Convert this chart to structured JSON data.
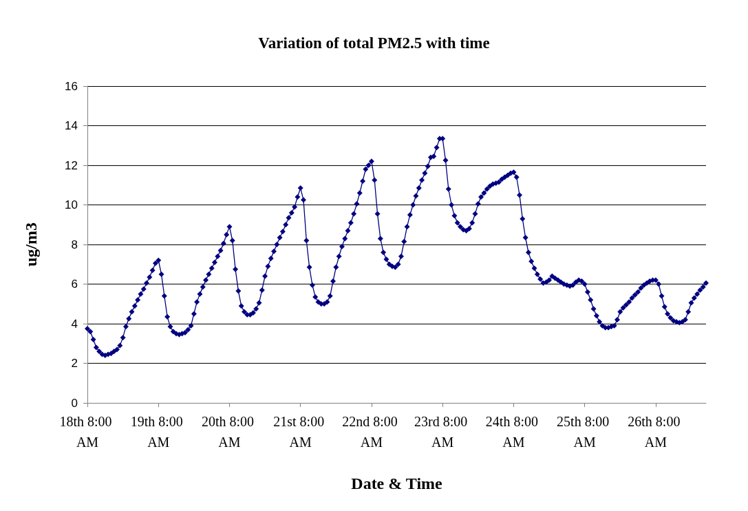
{
  "chart_data": {
    "type": "line",
    "title": "Variation of total PM2.5 with time",
    "xlabel": "Date & Time",
    "ylabel": "ug/m3",
    "categories": [
      "18th 8:00 AM",
      null,
      null,
      null,
      null,
      null,
      null,
      null,
      null,
      null,
      null,
      null,
      null,
      null,
      null,
      null,
      null,
      null,
      null,
      null,
      null,
      null,
      null,
      null,
      "19th 8:00 AM",
      null,
      null,
      null,
      null,
      null,
      null,
      null,
      null,
      null,
      null,
      null,
      null,
      null,
      null,
      null,
      null,
      null,
      null,
      null,
      null,
      null,
      null,
      null,
      "20th 8:00 AM",
      null,
      null,
      null,
      null,
      null,
      null,
      null,
      null,
      null,
      null,
      null,
      null,
      null,
      null,
      null,
      null,
      null,
      null,
      null,
      null,
      null,
      null,
      null,
      "21st 8:00 AM",
      null,
      null,
      null,
      null,
      null,
      null,
      null,
      null,
      null,
      null,
      null,
      null,
      null,
      null,
      null,
      null,
      null,
      null,
      null,
      null,
      null,
      null,
      null,
      "22nd 8:00 AM",
      null,
      null,
      null,
      null,
      null,
      null,
      null,
      null,
      null,
      null,
      null,
      null,
      null,
      null,
      null,
      null,
      null,
      null,
      null,
      null,
      null,
      null,
      null,
      "23rd 8:00 AM",
      null,
      null,
      null,
      null,
      null,
      null,
      null,
      null,
      null,
      null,
      null,
      null,
      null,
      null,
      null,
      null,
      null,
      null,
      null,
      null,
      null,
      null,
      null,
      "24th 8:00 AM",
      null,
      null,
      null,
      null,
      null,
      null,
      null,
      null,
      null,
      null,
      null,
      null,
      null,
      null,
      null,
      null,
      null,
      null,
      null,
      null,
      null,
      null,
      null,
      "25th 8:00 AM",
      null,
      null,
      null,
      null,
      null,
      null,
      null,
      null,
      null,
      null,
      null,
      null,
      null,
      null,
      null,
      null,
      null,
      null,
      null,
      null,
      null,
      null,
      null,
      "26th 8:00 AM",
      null,
      null,
      null,
      null,
      null,
      null,
      null,
      null,
      null,
      null,
      null,
      null,
      null,
      null,
      null,
      null,
      null
    ],
    "ylim": [
      0,
      16
    ],
    "yticks": [
      0,
      2,
      4,
      6,
      8,
      10,
      12,
      14,
      16
    ],
    "grid": "y",
    "marker": "diamond",
    "line_style": "solid",
    "series": [
      {
        "color": "#000080",
        "values": [
          3.75,
          3.6,
          3.2,
          2.8,
          2.6,
          2.45,
          2.4,
          2.45,
          2.5,
          2.6,
          2.7,
          2.9,
          3.3,
          3.85,
          4.25,
          4.6,
          4.9,
          5.2,
          5.5,
          5.75,
          6.05,
          6.35,
          6.7,
          7.05,
          7.2,
          6.5,
          5.4,
          4.35,
          3.85,
          3.6,
          3.5,
          3.45,
          3.5,
          3.55,
          3.7,
          3.9,
          4.5,
          5.1,
          5.5,
          5.85,
          6.2,
          6.5,
          6.8,
          7.1,
          7.4,
          7.7,
          8.05,
          8.5,
          8.9,
          8.2,
          6.75,
          5.65,
          4.9,
          4.6,
          4.45,
          4.45,
          4.55,
          4.75,
          5.05,
          5.7,
          6.4,
          6.9,
          7.3,
          7.65,
          8.0,
          8.35,
          8.65,
          9.0,
          9.35,
          9.6,
          9.9,
          10.4,
          10.85,
          10.25,
          8.2,
          6.85,
          5.95,
          5.35,
          5.1,
          5.0,
          5.0,
          5.1,
          5.4,
          6.15,
          6.85,
          7.4,
          7.9,
          8.3,
          8.7,
          9.1,
          9.55,
          10.05,
          10.6,
          11.2,
          11.8,
          12.0,
          12.2,
          11.25,
          9.55,
          8.3,
          7.6,
          7.25,
          7.0,
          6.9,
          6.85,
          7.0,
          7.4,
          8.15,
          8.9,
          9.5,
          10.0,
          10.45,
          10.85,
          11.25,
          11.6,
          11.95,
          12.4,
          12.45,
          12.9,
          13.35,
          13.35,
          12.25,
          10.8,
          10.0,
          9.45,
          9.1,
          8.9,
          8.75,
          8.7,
          8.8,
          9.1,
          9.55,
          10.05,
          10.4,
          10.6,
          10.8,
          10.95,
          11.05,
          11.1,
          11.15,
          11.3,
          11.4,
          11.5,
          11.6,
          11.65,
          11.4,
          10.5,
          9.3,
          8.35,
          7.6,
          7.15,
          6.8,
          6.5,
          6.25,
          6.05,
          6.1,
          6.2,
          6.4,
          6.3,
          6.2,
          6.1,
          6.0,
          5.95,
          5.9,
          5.95,
          6.1,
          6.2,
          6.15,
          6.0,
          5.6,
          5.2,
          4.75,
          4.4,
          4.1,
          3.9,
          3.8,
          3.8,
          3.85,
          3.9,
          4.2,
          4.6,
          4.8,
          4.95,
          5.1,
          5.3,
          5.45,
          5.6,
          5.8,
          5.95,
          6.05,
          6.15,
          6.2,
          6.2,
          6.0,
          5.4,
          4.85,
          4.5,
          4.3,
          4.15,
          4.1,
          4.05,
          4.1,
          4.2,
          4.6,
          5.05,
          5.3,
          5.5,
          5.7,
          5.85,
          6.05
        ]
      }
    ]
  }
}
